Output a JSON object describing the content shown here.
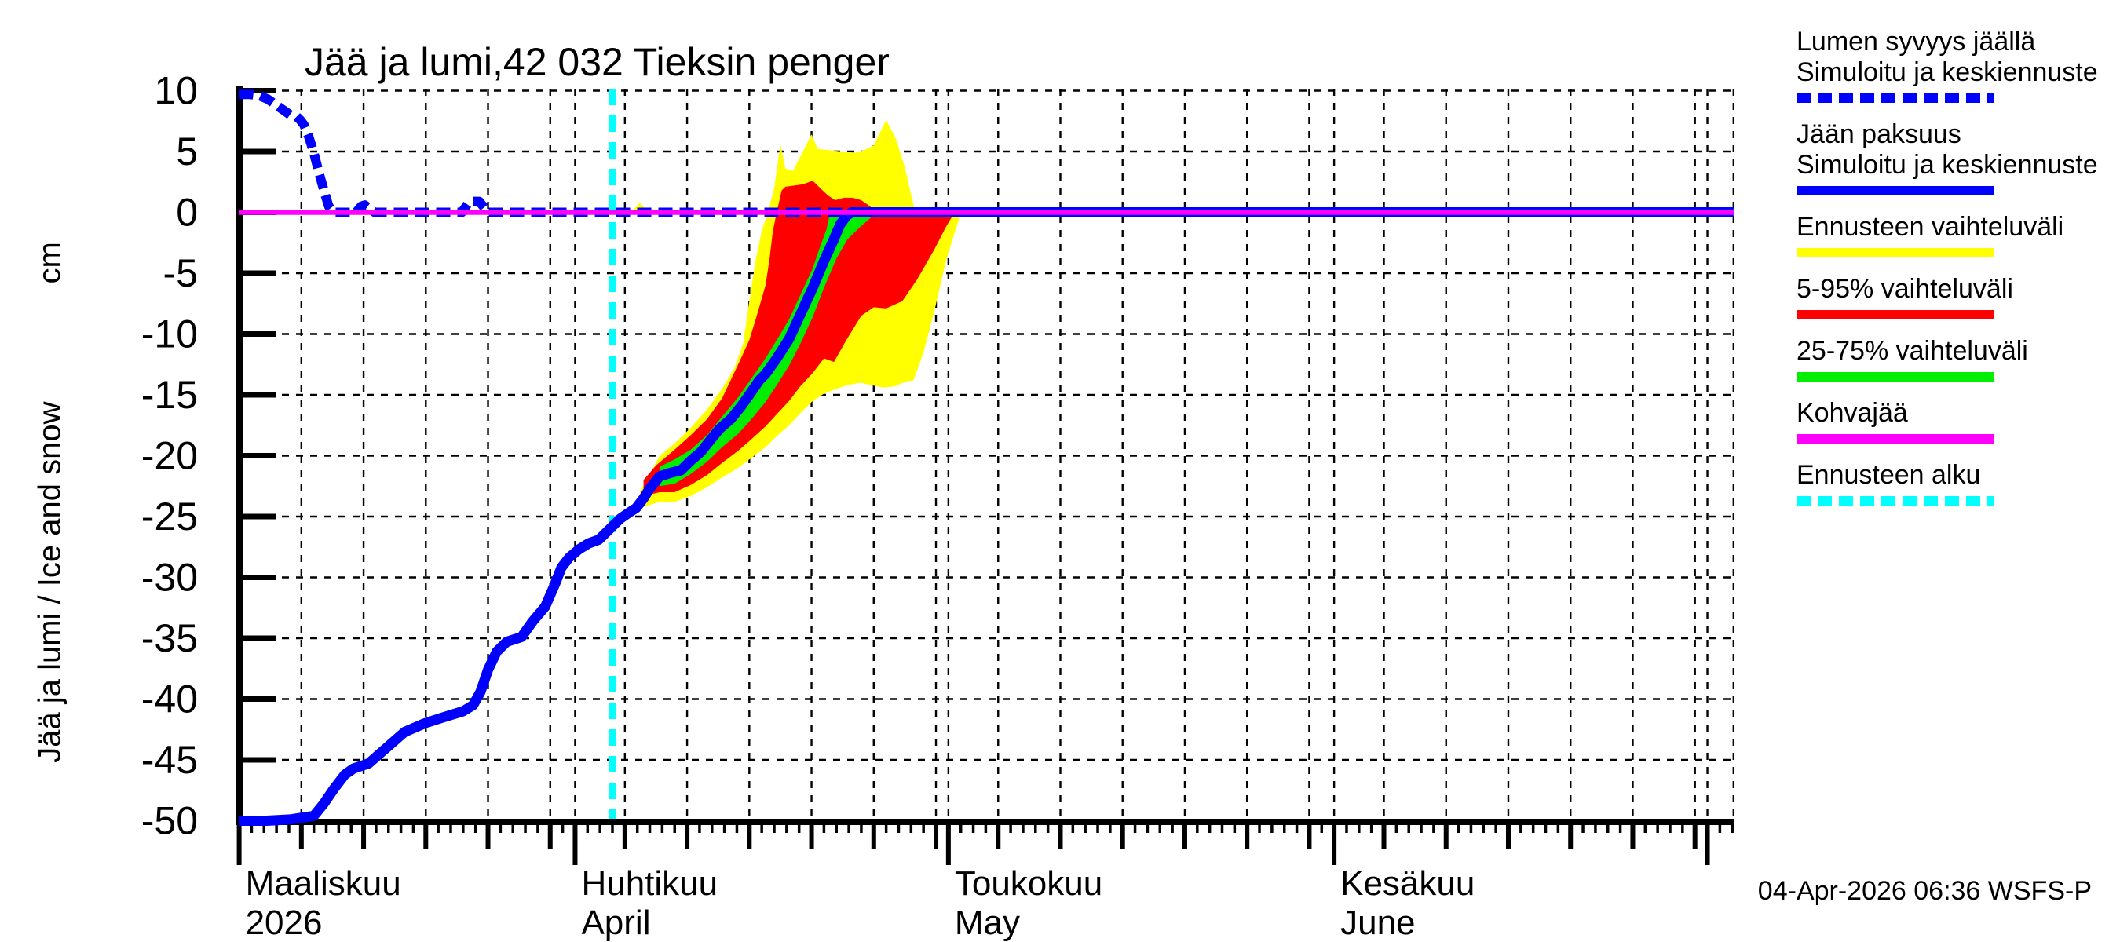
{
  "title": "Jää ja lumi,42 032 Tieksin penger",
  "y_axis": {
    "label": "Jää ja lumi / Ice and snow",
    "unit": "cm",
    "ticks": [
      10,
      5,
      0,
      -5,
      -10,
      -15,
      -20,
      -25,
      -30,
      -35,
      -40,
      -45,
      -50
    ]
  },
  "x_axis": {
    "months": [
      {
        "fi": "Maaliskuu",
        "en": "2026",
        "day": 4
      },
      {
        "fi": "Huhtikuu",
        "en": "April",
        "day": 31
      },
      {
        "fi": "Toukokuu",
        "en": "May",
        "day": 61
      },
      {
        "fi": "Kesäkuu",
        "en": "June",
        "day": 92
      }
    ]
  },
  "timestamp": "04-Apr-2026 06:36 WSFS-P",
  "colors": {
    "blue": "#0000ff",
    "yellow": "#ffff00",
    "red": "#ff0000",
    "green": "#00ee00",
    "magenta": "#ff00ff",
    "cyan": "#00ffff",
    "axis": "#000000"
  },
  "legend": {
    "items": [
      {
        "line1": "Lumen syvyys jäällä",
        "line2": "Simuloitu ja keskiennuste",
        "color": "#0000ff",
        "style": "dashed"
      },
      {
        "line1": "Jään paksuus",
        "line2": "Simuloitu ja keskiennuste",
        "color": "#0000ff",
        "style": "solid"
      },
      {
        "line1": "Ennusteen vaihteluväli",
        "line2": "",
        "color": "#ffff00",
        "style": "solid"
      },
      {
        "line1": "5-95% vaihteluväli",
        "line2": "",
        "color": "#ff0000",
        "style": "solid"
      },
      {
        "line1": "25-75% vaihteluväli",
        "line2": "",
        "color": "#00ee00",
        "style": "solid"
      },
      {
        "line1": "Kohvajää",
        "line2": "",
        "color": "#ff00ff",
        "style": "solid"
      },
      {
        "line1": "Ennusteen alku",
        "line2": "",
        "color": "#00ffff",
        "style": "dashed"
      }
    ]
  },
  "chart_data": {
    "type": "line",
    "title": "Jää ja lumi,42 032 Tieksin penger",
    "ylabel": "Jää ja lumi / Ice and snow (cm)",
    "ylim": [
      -50,
      10
    ],
    "y_gridstep": 5,
    "x_unit": "days since 2026-03-01",
    "x_range": [
      4,
      124.1
    ],
    "x_span_dates": "2026-03-05 to 2026-07-03",
    "forecast_start_day": 34,
    "month_tick_days": [
      4,
      31,
      61,
      92,
      122
    ],
    "fiveday_tick_days": [
      9,
      14,
      19,
      24,
      29,
      35,
      40,
      45,
      50,
      55,
      60,
      65,
      70,
      75,
      80,
      85,
      90,
      96,
      101,
      106,
      111,
      116,
      121
    ],
    "gridline_days": [
      9,
      14,
      19,
      24,
      29,
      31,
      35,
      40,
      45,
      50,
      55,
      60,
      61,
      65,
      70,
      75,
      80,
      85,
      90,
      92,
      96,
      101,
      106,
      111,
      116,
      121,
      122,
      124.1
    ],
    "series": [
      {
        "name": "snow_depth_on_ice",
        "label": "Lumen syvyys jäällä",
        "style": "dashed",
        "color": "#0000ff",
        "points": [
          [
            4,
            9.7
          ],
          [
            4.8,
            9.7
          ],
          [
            5.6,
            9.6
          ],
          [
            6.3,
            9.3
          ],
          [
            7.0,
            8.8
          ],
          [
            7.7,
            8.3
          ],
          [
            8.1,
            8.0
          ],
          [
            8.6,
            7.9
          ],
          [
            8.9,
            7.6
          ],
          [
            9.2,
            7.2
          ],
          [
            9.6,
            6.2
          ],
          [
            10.0,
            4.9
          ],
          [
            10.4,
            3.3
          ],
          [
            10.9,
            1.5
          ],
          [
            11.2,
            0.5
          ],
          [
            11.6,
            0
          ],
          [
            13.4,
            0
          ],
          [
            13.8,
            0.5
          ],
          [
            14.1,
            0.6
          ],
          [
            14.5,
            0.3
          ],
          [
            14.9,
            0
          ],
          [
            21.9,
            0
          ],
          [
            22.5,
            0.9
          ],
          [
            23.3,
            0.9
          ],
          [
            24.0,
            0
          ],
          [
            124.1,
            0
          ]
        ]
      },
      {
        "name": "ice_thickness_median",
        "label": "Jään paksuus",
        "style": "solid",
        "color": "#0000ff",
        "points": [
          [
            4,
            -50
          ],
          [
            6.2,
            -50
          ],
          [
            8.1,
            -49.9
          ],
          [
            10.0,
            -49.6
          ],
          [
            10.8,
            -48.6
          ],
          [
            11.6,
            -47.4
          ],
          [
            12.5,
            -46.2
          ],
          [
            13.2,
            -45.7
          ],
          [
            14.4,
            -45.3
          ],
          [
            15.4,
            -44.4
          ],
          [
            16.3,
            -43.6
          ],
          [
            17.3,
            -42.7
          ],
          [
            18.9,
            -42.0
          ],
          [
            20.4,
            -41.5
          ],
          [
            22.0,
            -41.0
          ],
          [
            22.8,
            -40.5
          ],
          [
            23.4,
            -39.4
          ],
          [
            24.0,
            -37.6
          ],
          [
            24.7,
            -36.1
          ],
          [
            25.5,
            -35.3
          ],
          [
            26.7,
            -34.9
          ],
          [
            27.6,
            -33.6
          ],
          [
            28.6,
            -32.4
          ],
          [
            29.4,
            -30.5
          ],
          [
            29.9,
            -29.2
          ],
          [
            30.5,
            -28.4
          ],
          [
            31.3,
            -27.7
          ],
          [
            32.1,
            -27.2
          ],
          [
            32.9,
            -26.9
          ],
          [
            33.5,
            -26.3
          ],
          [
            34.0,
            -25.8
          ],
          [
            34.6,
            -25.2
          ],
          [
            35.3,
            -24.7
          ],
          [
            35.9,
            -24.3
          ],
          [
            36.5,
            -23.5
          ],
          [
            37.0,
            -22.7
          ],
          [
            37.8,
            -21.7
          ],
          [
            38.7,
            -21.4
          ],
          [
            39.5,
            -21.2
          ],
          [
            40.3,
            -20.4
          ],
          [
            41.1,
            -19.7
          ],
          [
            41.8,
            -18.8
          ],
          [
            42.6,
            -17.8
          ],
          [
            43.5,
            -17.0
          ],
          [
            44.3,
            -16.0
          ],
          [
            45.0,
            -15.0
          ],
          [
            45.8,
            -13.8
          ],
          [
            46.3,
            -13.3
          ],
          [
            47.2,
            -12.0
          ],
          [
            48.2,
            -10.4
          ],
          [
            49.1,
            -8.4
          ],
          [
            50.1,
            -6.2
          ],
          [
            51.0,
            -4.0
          ],
          [
            51.8,
            -2.2
          ],
          [
            52.3,
            -1.0
          ],
          [
            52.8,
            -0.3
          ],
          [
            53.2,
            0
          ],
          [
            124.1,
            0
          ]
        ]
      },
      {
        "name": "kohvajaa",
        "label": "Kohvajää",
        "style": "solid",
        "color": "#ff00ff",
        "points": [
          [
            4,
            0
          ],
          [
            124.1,
            0
          ]
        ]
      }
    ],
    "bands": [
      {
        "name": "ennusteen_vaihteluvali",
        "label": "Ennusteen vaihteluväli",
        "color": "#ffff00",
        "upper": [
          [
            36.2,
            -23.0
          ],
          [
            37.8,
            -20.0
          ],
          [
            39.0,
            -19.0
          ],
          [
            40.3,
            -17.7
          ],
          [
            41.6,
            -16.2
          ],
          [
            42.8,
            -14.5
          ],
          [
            43.8,
            -12.8
          ],
          [
            44.5,
            -10.8
          ],
          [
            44.9,
            -8.0
          ],
          [
            45.5,
            -4.0
          ],
          [
            46.0,
            -1.5
          ],
          [
            46.5,
            0
          ],
          [
            47.0,
            2.0
          ],
          [
            47.5,
            5.6
          ],
          [
            47.9,
            3.6
          ],
          [
            48.5,
            3.4
          ],
          [
            49.3,
            5.0
          ],
          [
            50.0,
            6.4
          ],
          [
            50.5,
            5.2
          ],
          [
            51.5,
            5.1
          ],
          [
            52.5,
            5.0
          ],
          [
            53.5,
            4.9
          ],
          [
            54.2,
            5.1
          ],
          [
            55.0,
            5.5
          ],
          [
            56.0,
            7.6
          ],
          [
            56.8,
            6.0
          ],
          [
            57.5,
            3.7
          ],
          [
            58.1,
            1.0
          ],
          [
            58.4,
            0
          ]
        ],
        "lower": [
          [
            36.2,
            -24.3
          ],
          [
            37.8,
            -23.8
          ],
          [
            39.0,
            -23.8
          ],
          [
            40.3,
            -23.3
          ],
          [
            41.6,
            -22.6
          ],
          [
            42.8,
            -21.8
          ],
          [
            44.1,
            -21.0
          ],
          [
            45.0,
            -20.3
          ],
          [
            46.3,
            -19.3
          ],
          [
            47.2,
            -18.4
          ],
          [
            48.2,
            -17.5
          ],
          [
            49.1,
            -16.5
          ],
          [
            50.1,
            -15.5
          ],
          [
            51.0,
            -14.9
          ],
          [
            52.0,
            -14.5
          ],
          [
            52.9,
            -14.2
          ],
          [
            53.9,
            -14.0
          ],
          [
            54.8,
            -14.2
          ],
          [
            55.8,
            -14.4
          ],
          [
            56.7,
            -14.3
          ],
          [
            57.6,
            -13.9
          ],
          [
            58.2,
            -13.8
          ],
          [
            59.0,
            -11.5
          ],
          [
            59.9,
            -8.0
          ],
          [
            60.8,
            -4.0
          ],
          [
            61.7,
            -1.0
          ],
          [
            62.1,
            0
          ]
        ]
      },
      {
        "name": "vaihteluvali_5_95",
        "label": "5-95% vaihteluväli",
        "color": "#ff0000",
        "upper": [
          [
            36.5,
            -22.0
          ],
          [
            37.5,
            -20.8
          ],
          [
            39.0,
            -19.5
          ],
          [
            40.3,
            -18.3
          ],
          [
            41.6,
            -17.0
          ],
          [
            42.8,
            -15.3
          ],
          [
            44.1,
            -12.5
          ],
          [
            45.0,
            -10.5
          ],
          [
            45.6,
            -8.5
          ],
          [
            46.3,
            -6.0
          ],
          [
            46.6,
            -4.0
          ],
          [
            46.9,
            -1.5
          ],
          [
            47.2,
            0
          ],
          [
            47.6,
            1.8
          ],
          [
            47.9,
            2.1
          ],
          [
            48.6,
            2.2
          ],
          [
            49.3,
            2.3
          ],
          [
            50.1,
            2.6
          ],
          [
            50.8,
            1.9
          ],
          [
            51.3,
            1.4
          ],
          [
            51.9,
            1.0
          ],
          [
            52.6,
            1.2
          ],
          [
            53.3,
            1.2
          ],
          [
            54.0,
            1.0
          ],
          [
            54.7,
            0.5
          ],
          [
            55.1,
            0
          ]
        ],
        "lower": [
          [
            36.5,
            -23.3
          ],
          [
            37.8,
            -23.0
          ],
          [
            39.0,
            -23.0
          ],
          [
            40.3,
            -22.4
          ],
          [
            41.6,
            -21.6
          ],
          [
            42.8,
            -20.6
          ],
          [
            44.1,
            -19.6
          ],
          [
            45.0,
            -18.8
          ],
          [
            46.3,
            -17.6
          ],
          [
            47.2,
            -16.6
          ],
          [
            48.2,
            -15.5
          ],
          [
            49.1,
            -14.3
          ],
          [
            50.1,
            -13.2
          ],
          [
            51.0,
            -12.0
          ],
          [
            51.8,
            -12.3
          ],
          [
            52.8,
            -10.5
          ],
          [
            54.0,
            -8.5
          ],
          [
            55.0,
            -7.8
          ],
          [
            56.0,
            -7.9
          ],
          [
            57.3,
            -7.3
          ],
          [
            58.5,
            -5.5
          ],
          [
            59.9,
            -3.0
          ],
          [
            60.8,
            -1.2
          ],
          [
            61.5,
            0
          ]
        ]
      },
      {
        "name": "vaihteluvali_25_75",
        "label": "25-75% vaihteluväli",
        "color": "#00ee00",
        "upper": [
          [
            37.8,
            -20.9
          ],
          [
            39.0,
            -20.3
          ],
          [
            40.3,
            -19.5
          ],
          [
            41.6,
            -18.3
          ],
          [
            42.8,
            -16.8
          ],
          [
            44.1,
            -15.2
          ],
          [
            45.0,
            -13.9
          ],
          [
            46.3,
            -12.0
          ],
          [
            47.2,
            -10.5
          ],
          [
            48.2,
            -8.8
          ],
          [
            49.1,
            -6.8
          ],
          [
            50.1,
            -4.6
          ],
          [
            50.7,
            -2.8
          ],
          [
            51.2,
            -1.4
          ],
          [
            51.5,
            0
          ]
        ],
        "lower": [
          [
            37.8,
            -22.5
          ],
          [
            39.0,
            -22.3
          ],
          [
            40.3,
            -21.5
          ],
          [
            41.6,
            -20.5
          ],
          [
            42.8,
            -19.3
          ],
          [
            44.1,
            -18.2
          ],
          [
            45.0,
            -17.2
          ],
          [
            46.3,
            -15.6
          ],
          [
            47.2,
            -14.2
          ],
          [
            48.2,
            -12.6
          ],
          [
            49.1,
            -10.8
          ],
          [
            50.1,
            -8.6
          ],
          [
            51.0,
            -6.2
          ],
          [
            52.0,
            -3.8
          ],
          [
            52.9,
            -2.2
          ],
          [
            53.9,
            -1.2
          ],
          [
            54.8,
            -0.4
          ],
          [
            55.8,
            0
          ]
        ]
      },
      {
        "name": "yellow_bump_above_zero",
        "label": "Ennusteen vaihteluväli",
        "color": "#ffff00",
        "upper": [
          [
            35.5,
            0
          ],
          [
            36.2,
            0.8
          ],
          [
            36.9,
            0
          ]
        ],
        "lower": [
          [
            36.9,
            0
          ],
          [
            35.5,
            0
          ]
        ]
      }
    ]
  }
}
